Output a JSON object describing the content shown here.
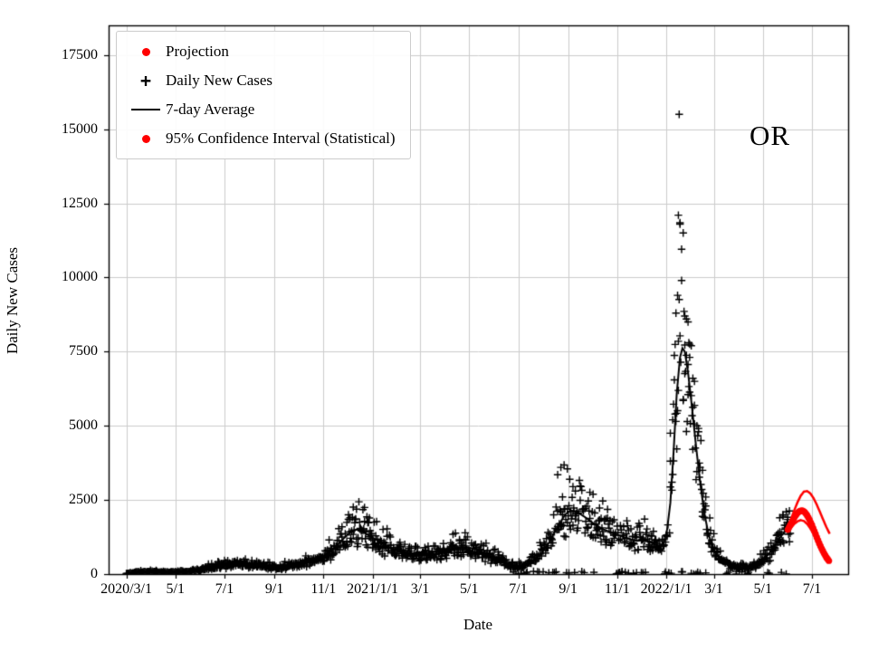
{
  "figure": {
    "annotation": "OR"
  },
  "legend": {
    "items": [
      {
        "label": "Projection",
        "marker": "red-dot"
      },
      {
        "label": "Daily New Cases",
        "marker": "black-plus"
      },
      {
        "label": "7-day Average",
        "marker": "black-line"
      },
      {
        "label": "95% Confidence Interval (Statistical)",
        "marker": "red-dot"
      }
    ]
  },
  "chart_data": {
    "type": "scatter",
    "title": "",
    "xlabel": "Date",
    "ylabel": "Daily New Cases",
    "x_unit": "days since 2020-03-01",
    "xlim": [
      -22,
      897
    ],
    "ylim": [
      0,
      18500
    ],
    "grid": true,
    "legend_position": "upper left",
    "colors": {
      "cases": "#000000",
      "average": "#000000",
      "projection": "#ff0000",
      "grid": "#cccccc"
    },
    "x_ticks": [
      {
        "day": 0,
        "label": "2020/3/1"
      },
      {
        "day": 61,
        "label": "5/1"
      },
      {
        "day": 122,
        "label": "7/1"
      },
      {
        "day": 184,
        "label": "9/1"
      },
      {
        "day": 245,
        "label": "11/1"
      },
      {
        "day": 306,
        "label": "2021/1/1"
      },
      {
        "day": 365,
        "label": "3/1"
      },
      {
        "day": 426,
        "label": "5/1"
      },
      {
        "day": 487,
        "label": "7/1"
      },
      {
        "day": 549,
        "label": "9/1"
      },
      {
        "day": 610,
        "label": "11/1"
      },
      {
        "day": 671,
        "label": "2022/1/1"
      },
      {
        "day": 730,
        "label": "3/1"
      },
      {
        "day": 791,
        "label": "5/1"
      },
      {
        "day": 852,
        "label": "7/1"
      }
    ],
    "y_ticks": [
      0,
      2500,
      5000,
      7500,
      10000,
      12500,
      15000,
      17500
    ],
    "avg_series": [
      [
        0,
        20
      ],
      [
        10,
        50
      ],
      [
        20,
        75
      ],
      [
        30,
        85
      ],
      [
        40,
        75
      ],
      [
        50,
        65
      ],
      [
        61,
        65
      ],
      [
        75,
        90
      ],
      [
        90,
        130
      ],
      [
        105,
        230
      ],
      [
        120,
        300
      ],
      [
        135,
        335
      ],
      [
        150,
        310
      ],
      [
        165,
        290
      ],
      [
        184,
        235
      ],
      [
        200,
        265
      ],
      [
        215,
        330
      ],
      [
        230,
        460
      ],
      [
        245,
        620
      ],
      [
        258,
        850
      ],
      [
        270,
        1200
      ],
      [
        280,
        1450
      ],
      [
        288,
        1520
      ],
      [
        295,
        1400
      ],
      [
        306,
        1230
      ],
      [
        318,
        1030
      ],
      [
        330,
        850
      ],
      [
        345,
        720
      ],
      [
        360,
        660
      ],
      [
        375,
        620
      ],
      [
        390,
        700
      ],
      [
        405,
        820
      ],
      [
        415,
        900
      ],
      [
        425,
        900
      ],
      [
        435,
        830
      ],
      [
        445,
        700
      ],
      [
        455,
        560
      ],
      [
        465,
        420
      ],
      [
        475,
        310
      ],
      [
        485,
        255
      ],
      [
        495,
        300
      ],
      [
        505,
        430
      ],
      [
        515,
        680
      ],
      [
        525,
        1050
      ],
      [
        535,
        1550
      ],
      [
        545,
        2000
      ],
      [
        552,
        2150
      ],
      [
        560,
        2100
      ],
      [
        570,
        1920
      ],
      [
        580,
        1720
      ],
      [
        592,
        1520
      ],
      [
        605,
        1380
      ],
      [
        615,
        1280
      ],
      [
        625,
        1180
      ],
      [
        635,
        1120
      ],
      [
        643,
        1150
      ],
      [
        650,
        1100
      ],
      [
        657,
        1000
      ],
      [
        663,
        950
      ],
      [
        668,
        1080
      ],
      [
        672,
        1500
      ],
      [
        676,
        2400
      ],
      [
        680,
        4100
      ],
      [
        684,
        6100
      ],
      [
        688,
        7300
      ],
      [
        691,
        7620
      ],
      [
        694,
        7500
      ],
      [
        698,
        6800
      ],
      [
        703,
        5600
      ],
      [
        708,
        4300
      ],
      [
        713,
        3100
      ],
      [
        718,
        2100
      ],
      [
        723,
        1400
      ],
      [
        728,
        950
      ],
      [
        734,
        620
      ],
      [
        741,
        420
      ],
      [
        748,
        320
      ],
      [
        755,
        260
      ],
      [
        762,
        225
      ],
      [
        769,
        215
      ],
      [
        776,
        245
      ],
      [
        783,
        320
      ],
      [
        790,
        450
      ],
      [
        797,
        640
      ],
      [
        804,
        880
      ],
      [
        811,
        1180
      ],
      [
        817,
        1400
      ],
      [
        822,
        1520
      ],
      [
        826,
        1560
      ]
    ],
    "outliers": [
      [
        536,
        3350
      ],
      [
        540,
        3600
      ],
      [
        544,
        3680
      ],
      [
        548,
        3550
      ],
      [
        551,
        3200
      ],
      [
        555,
        2950
      ],
      [
        558,
        2800
      ],
      [
        676,
        4750
      ],
      [
        679,
        5200
      ],
      [
        681,
        6550
      ],
      [
        683,
        8800
      ],
      [
        685,
        9400
      ],
      [
        686,
        12100
      ],
      [
        687,
        15500
      ],
      [
        688,
        11800
      ],
      [
        690,
        9900
      ],
      [
        692,
        11500
      ],
      [
        694,
        8700
      ],
      [
        696,
        8600
      ],
      [
        698,
        8500
      ],
      [
        699,
        7800
      ],
      [
        700,
        7750
      ],
      [
        702,
        7700
      ],
      [
        704,
        6600
      ],
      [
        706,
        6500
      ],
      [
        709,
        5000
      ],
      [
        711,
        4800
      ],
      [
        713,
        3600
      ],
      [
        716,
        3500
      ],
      [
        720,
        2600
      ],
      [
        812,
        1900
      ],
      [
        816,
        2000
      ],
      [
        820,
        2100
      ]
    ],
    "scatter_gen": {
      "seed": 42,
      "sigma": 0.22,
      "end_day": 825,
      "dense_after_day": 90,
      "zero_after_day": 480,
      "zero_prob": 0.1
    },
    "projection": [
      [
        822,
        1500
      ],
      [
        825,
        1650
      ],
      [
        828,
        1800
      ],
      [
        831,
        1950
      ],
      [
        834,
        2060
      ],
      [
        837,
        2130
      ],
      [
        840,
        2140
      ],
      [
        843,
        2090
      ],
      [
        846,
        1980
      ],
      [
        849,
        1830
      ],
      [
        852,
        1650
      ],
      [
        855,
        1450
      ],
      [
        858,
        1240
      ],
      [
        861,
        1040
      ],
      [
        864,
        860
      ],
      [
        867,
        700
      ],
      [
        870,
        560
      ],
      [
        873,
        450
      ]
    ],
    "ci_upper": [
      [
        822,
        1560
      ],
      [
        826,
        1850
      ],
      [
        830,
        2150
      ],
      [
        834,
        2420
      ],
      [
        838,
        2640
      ],
      [
        842,
        2780
      ],
      [
        846,
        2800
      ],
      [
        850,
        2720
      ],
      [
        854,
        2560
      ],
      [
        858,
        2340
      ],
      [
        862,
        2090
      ],
      [
        866,
        1830
      ],
      [
        870,
        1580
      ],
      [
        874,
        1360
      ]
    ],
    "ci_lower": [
      [
        822,
        1440
      ],
      [
        826,
        1570
      ],
      [
        830,
        1690
      ],
      [
        834,
        1780
      ],
      [
        838,
        1820
      ],
      [
        842,
        1790
      ],
      [
        846,
        1690
      ],
      [
        850,
        1540
      ],
      [
        854,
        1350
      ],
      [
        858,
        1140
      ],
      [
        862,
        930
      ],
      [
        866,
        730
      ],
      [
        870,
        560
      ],
      [
        874,
        420
      ]
    ]
  }
}
